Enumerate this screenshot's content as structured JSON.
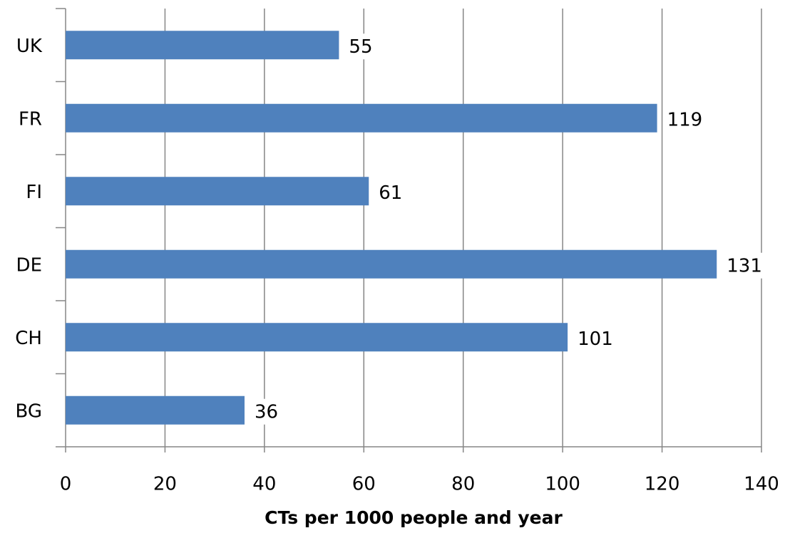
{
  "chart_data": {
    "type": "bar",
    "orientation": "horizontal",
    "x_label": "CTs per 1000 people and year",
    "categories": [
      "UK",
      "FR",
      "FI",
      "DE",
      "CH",
      "BG"
    ],
    "values": [
      55,
      119,
      61,
      131,
      101,
      36
    ],
    "color": "#4f81bd",
    "xlim": [
      0,
      140
    ],
    "xticks": [
      0,
      20,
      40,
      60,
      80,
      100,
      120,
      140
    ],
    "grid": true
  }
}
